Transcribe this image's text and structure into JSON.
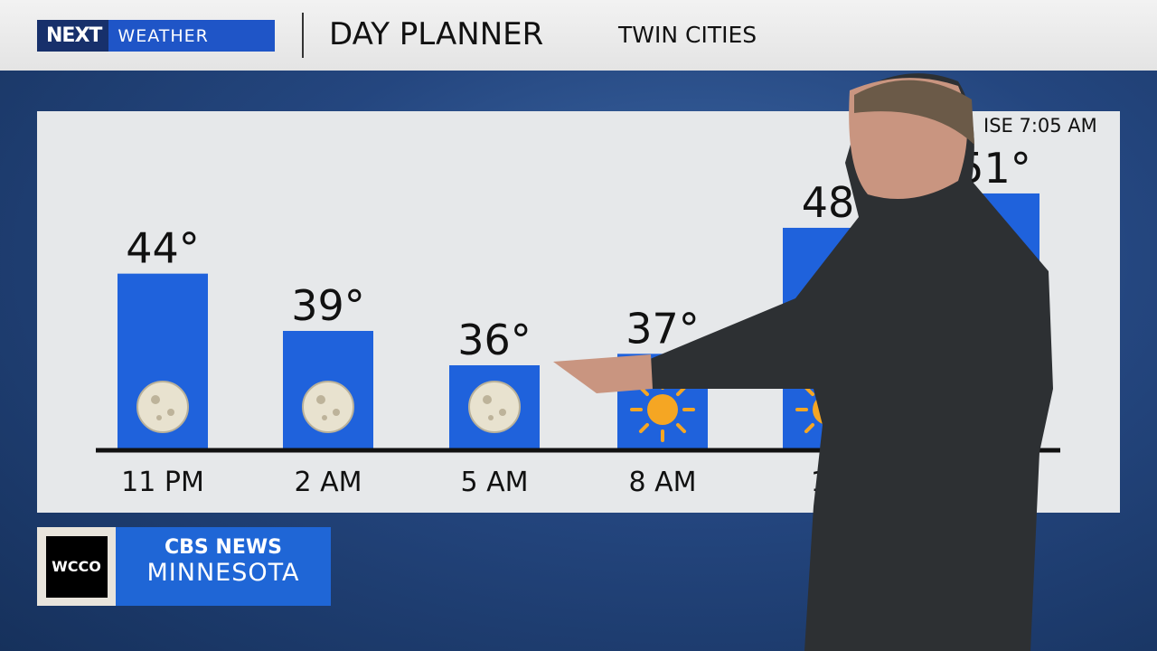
{
  "header": {
    "brand_next": "NEXT",
    "brand_weather": "WEATHER",
    "title": "DAY PLANNER",
    "location": "TWIN CITIES"
  },
  "sunrise_text": "ISE 7:05 AM",
  "logo": {
    "station": "WCCO",
    "network": "CBS NEWS",
    "region": "MINNESOTA"
  },
  "colors": {
    "bar": "#1f62dc",
    "panel": "#e6e8ea",
    "header_brand": "#1f55c7"
  },
  "chart_data": {
    "type": "bar",
    "categories": [
      "11 PM",
      "2 AM",
      "5 AM",
      "8 AM",
      "11",
      ""
    ],
    "values": [
      44,
      39,
      36,
      37,
      48,
      51
    ],
    "data_labels": [
      "44°",
      "39°",
      "36°",
      "37°",
      "48",
      "51°"
    ],
    "icons": [
      "moon-icon",
      "moon-icon",
      "moon-icon",
      "sun-icon",
      "sun-icon",
      ""
    ],
    "title": "",
    "xlabel": "",
    "ylabel": ""
  }
}
